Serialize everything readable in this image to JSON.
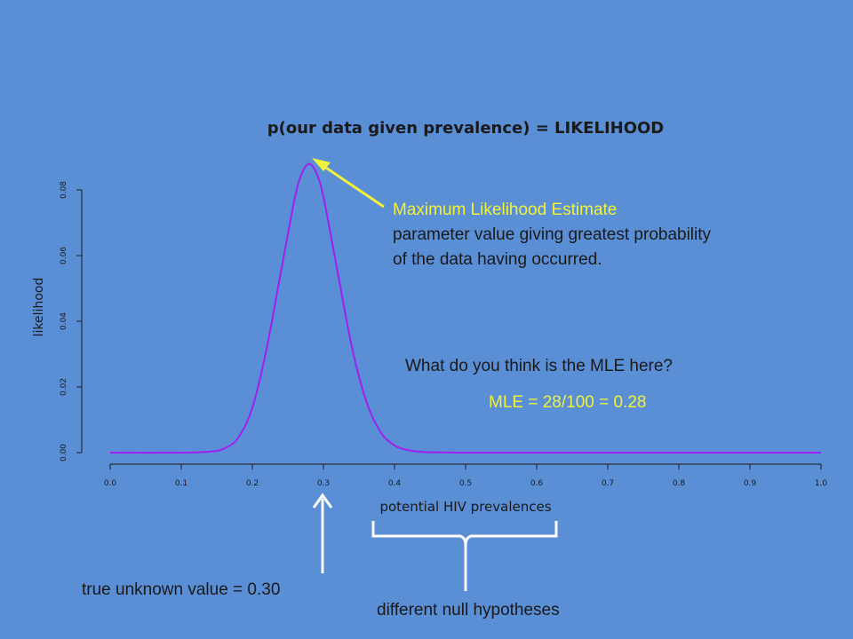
{
  "chart_data": {
    "type": "line",
    "title": "p(our data given prevalence) = LIKELIHOOD",
    "xlabel": "potential HIV prevalences",
    "ylabel": "likelihood",
    "xlim": [
      0.0,
      1.0
    ],
    "ylim": [
      0.0,
      0.08
    ],
    "x_ticks": [
      "0.0",
      "0.1",
      "0.2",
      "0.3",
      "0.4",
      "0.5",
      "0.6",
      "0.7",
      "0.8",
      "0.9",
      "1.0"
    ],
    "y_ticks": [
      "0.00",
      "0.02",
      "0.04",
      "0.06",
      "0.08"
    ],
    "grid": false,
    "series": [
      {
        "color": "#a020f0",
        "x": [
          0.0,
          0.1,
          0.14,
          0.16,
          0.18,
          0.2,
          0.22,
          0.24,
          0.26,
          0.27,
          0.28,
          0.29,
          0.3,
          0.32,
          0.34,
          0.36,
          0.38,
          0.4,
          0.42,
          0.44,
          0.46,
          0.5,
          0.6,
          1.0
        ],
        "y": [
          0.0,
          0.0,
          0.0003,
          0.0012,
          0.0045,
          0.0136,
          0.0316,
          0.0548,
          0.0778,
          0.0852,
          0.0879,
          0.0852,
          0.0779,
          0.055,
          0.0322,
          0.0158,
          0.0064,
          0.0022,
          0.0007,
          0.0002,
          0.0001,
          0.0,
          0.0,
          0.0
        ]
      }
    ]
  },
  "annotations": {
    "mle_heading": "Maximum Likelihood Estimate",
    "mle_desc_line1": "parameter value giving greatest probability",
    "mle_desc_line2": "of the data having occurred.",
    "question": "What do you think is the MLE here?",
    "mle_answer": "MLE = 28/100 = 0.28",
    "true_value": "true unknown value = 0.30",
    "null_hypotheses": "different null hypotheses"
  },
  "colors": {
    "background": "#5a8ed5",
    "curve": "#a020f0",
    "highlight": "#f2f23c",
    "arrow_white": "#ffffff"
  }
}
